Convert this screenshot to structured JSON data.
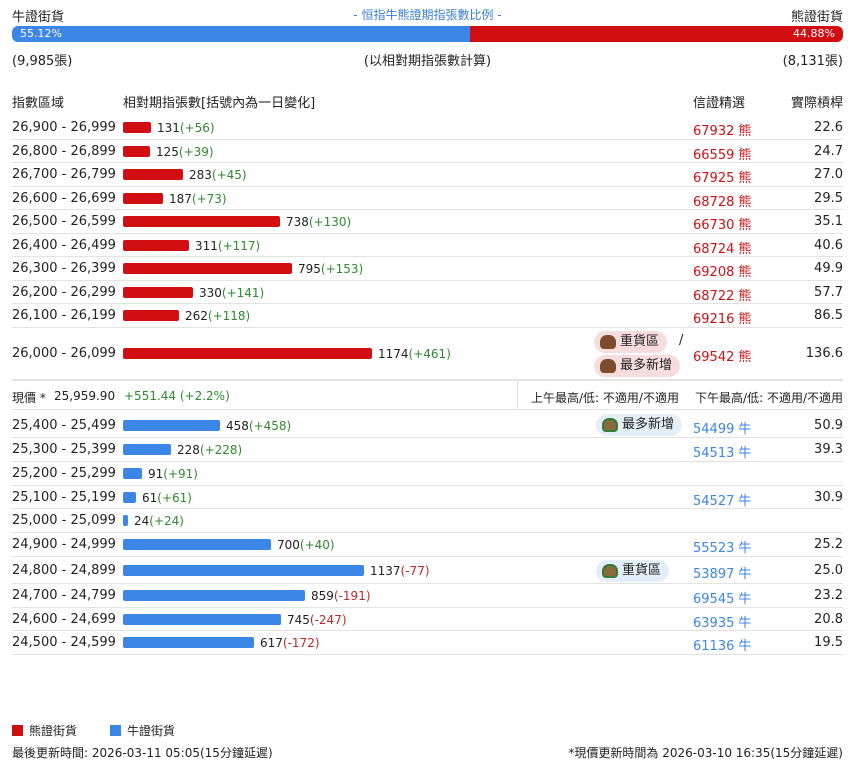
{
  "header": {
    "bull_label": "牛證街貨",
    "title": "- 恒指牛熊證期指張數比例 -",
    "bear_label": "熊證街貨",
    "bull_pct": "55.12%",
    "bear_pct": "44.88%",
    "bull_pct_value": 55.12,
    "bull_count": "(9,985張)",
    "note": "(以相對期指張數計算)",
    "bear_count": "(8,131張)"
  },
  "columns": {
    "range": "指數區域",
    "contracts": "相對期指張數[括號內為一日變化]",
    "warrant": "信證精選",
    "leverage": "實際槓桿"
  },
  "bear_rows": [
    {
      "range": "26,900 - 26,999",
      "count": "131",
      "change": "(+56)",
      "code": "67932",
      "type": "熊",
      "leverage": "22.6",
      "value": 131
    },
    {
      "range": "26,800 - 26,899",
      "count": "125",
      "change": "(+39)",
      "code": "66559",
      "type": "熊",
      "leverage": "24.7",
      "value": 125
    },
    {
      "range": "26,700 - 26,799",
      "count": "283",
      "change": "(+45)",
      "code": "67925",
      "type": "熊",
      "leverage": "27.0",
      "value": 283
    },
    {
      "range": "26,600 - 26,699",
      "count": "187",
      "change": "(+73)",
      "code": "68728",
      "type": "熊",
      "leverage": "29.5",
      "value": 187
    },
    {
      "range": "26,500 - 26,599",
      "count": "738",
      "change": "(+130)",
      "code": "66730",
      "type": "熊",
      "leverage": "35.1",
      "value": 738
    },
    {
      "range": "26,400 - 26,499",
      "count": "311",
      "change": "(+117)",
      "code": "68724",
      "type": "熊",
      "leverage": "40.6",
      "value": 311
    },
    {
      "range": "26,300 - 26,399",
      "count": "795",
      "change": "(+153)",
      "code": "69208",
      "type": "熊",
      "leverage": "49.9",
      "value": 795
    },
    {
      "range": "26,200 - 26,299",
      "count": "330",
      "change": "(+141)",
      "code": "68722",
      "type": "熊",
      "leverage": "57.7",
      "value": 330
    },
    {
      "range": "26,100 - 26,199",
      "count": "262",
      "change": "(+118)",
      "code": "69216",
      "type": "熊",
      "leverage": "86.5",
      "value": 262
    },
    {
      "range": "26,000 - 26,099",
      "count": "1174",
      "change": "(+461)",
      "code": "69542",
      "type": "熊",
      "leverage": "136.6",
      "value": 1174
    }
  ],
  "bear_tags": {
    "heavy": "重貨區",
    "slash": "/",
    "most_new": "最多新增"
  },
  "spot": {
    "label": "現價 *",
    "price": "25,959.90",
    "change": "+551.44 (+2.2%)",
    "am": "上午最高/低: 不適用/不適用",
    "pm": "下午最高/低: 不適用/不適用"
  },
  "bull_rows": [
    {
      "range": "25,400 - 25,499",
      "count": "458",
      "change": "(+458)",
      "code": "54499",
      "type": "牛",
      "leverage": "50.9",
      "value": 458
    },
    {
      "range": "25,300 - 25,399",
      "count": "228",
      "change": "(+228)",
      "code": "54513",
      "type": "牛",
      "leverage": "39.3",
      "value": 228
    },
    {
      "range": "25,200 - 25,299",
      "count": "91",
      "change": "(+91)",
      "code": "",
      "type": "",
      "leverage": "",
      "value": 91
    },
    {
      "range": "25,100 - 25,199",
      "count": "61",
      "change": "(+61)",
      "code": "54527",
      "type": "牛",
      "leverage": "30.9",
      "value": 61
    },
    {
      "range": "25,000 - 25,099",
      "count": "24",
      "change": "(+24)",
      "code": "",
      "type": "",
      "leverage": "",
      "value": 24
    },
    {
      "range": "24,900 - 24,999",
      "count": "700",
      "change": "(+40)",
      "code": "55523",
      "type": "牛",
      "leverage": "25.2",
      "value": 700
    },
    {
      "range": "24,800 - 24,899",
      "count": "1137",
      "change": "(-77)",
      "code": "53897",
      "type": "牛",
      "leverage": "25.0",
      "value": 1137
    },
    {
      "range": "24,700 - 24,799",
      "count": "859",
      "change": "(-191)",
      "code": "69545",
      "type": "牛",
      "leverage": "23.2",
      "value": 859
    },
    {
      "range": "24,600 - 24,699",
      "count": "745",
      "change": "(-247)",
      "code": "63935",
      "type": "牛",
      "leverage": "20.8",
      "value": 745
    },
    {
      "range": "24,500 - 24,599",
      "count": "617",
      "change": "(-172)",
      "code": "61136",
      "type": "牛",
      "leverage": "19.5",
      "value": 617
    }
  ],
  "bull_tags": {
    "most_new": "最多新增",
    "heavy": "重貨區"
  },
  "legend": {
    "bear": "熊證街貨",
    "bull": "牛證街貨"
  },
  "footer": {
    "updated": "最後更新時間: 2026-03-11 05:05(15分鐘延遲)",
    "price_updated": "*現價更新時間為 2026-03-10 16:35(15分鐘延遲)"
  },
  "colors": {
    "bear": "#d10f12",
    "bull": "#3b86e6",
    "positive": "#2e8b2e",
    "negative": "#c0262b"
  },
  "icons": {
    "bear_tag": "bear-icon",
    "bull_tag": "bull-icon"
  }
}
